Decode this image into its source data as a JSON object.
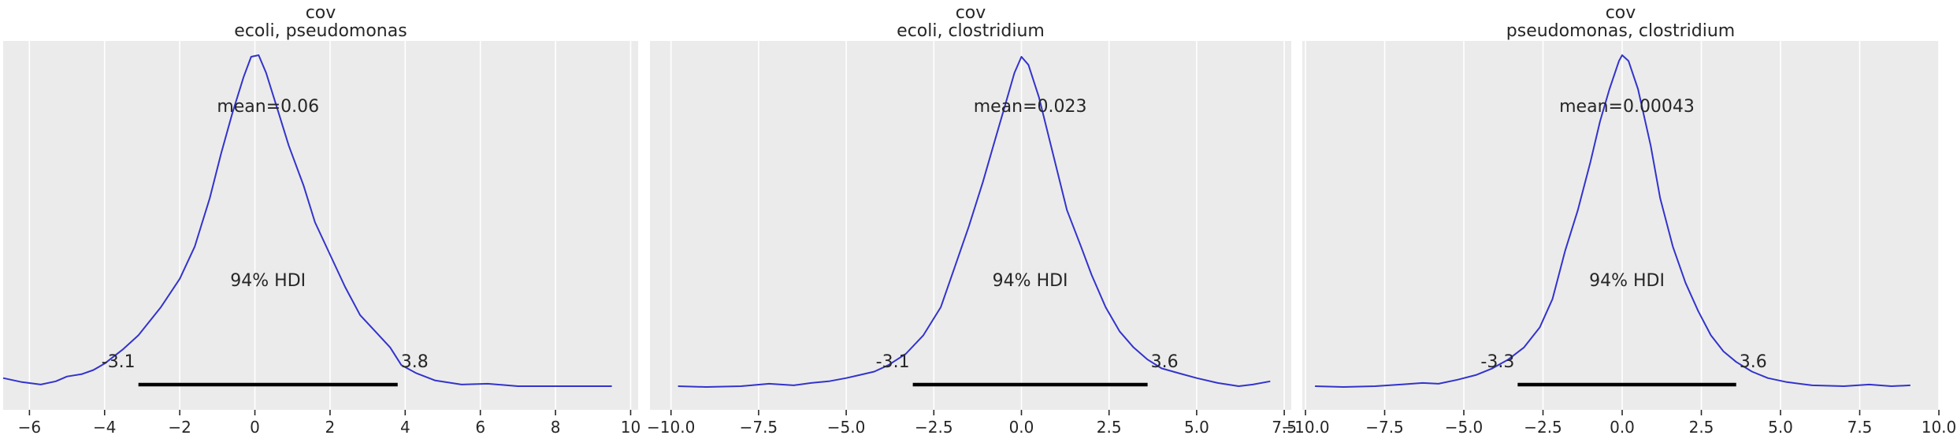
{
  "chart_data": [
    {
      "type": "line",
      "title": "cov",
      "subtitle": "ecoli, pseudomonas",
      "xlim": [
        -6.7,
        10.2
      ],
      "xticks": [
        -6,
        -4,
        -2,
        0,
        2,
        4,
        6,
        8,
        10
      ],
      "xtick_labels": [
        "−6",
        "−4",
        "−2",
        "0",
        "2",
        "4",
        "6",
        "8",
        "10"
      ],
      "grid": true,
      "mean_label": "mean=0.06",
      "hdi_label": "94% HDI",
      "hdi": [
        -3.1,
        3.8
      ],
      "hdi_labels": [
        "-3.1",
        "3.8"
      ],
      "line_color": "#3333cc",
      "hdi_color": "#000000",
      "background": "#ebebeb",
      "series": [
        {
          "x": [
            -6.7,
            -6.2,
            -5.7,
            -5.3,
            -5.0,
            -4.6,
            -4.3,
            -4.0,
            -3.5,
            -3.1,
            -2.5,
            -2.0,
            -1.6,
            -1.2,
            -0.9,
            -0.6,
            -0.3,
            -0.1,
            0.1,
            0.3,
            0.6,
            0.9,
            1.3,
            1.6,
            2.0,
            2.4,
            2.8,
            3.2,
            3.6,
            3.9,
            4.3,
            4.8,
            5.5,
            6.2,
            7.0,
            8.0,
            9.5
          ],
          "y": [
            0.012,
            0.007,
            0.004,
            0.008,
            0.014,
            0.017,
            0.022,
            0.03,
            0.048,
            0.065,
            0.1,
            0.135,
            0.175,
            0.235,
            0.29,
            0.34,
            0.385,
            0.41,
            0.412,
            0.39,
            0.345,
            0.3,
            0.25,
            0.205,
            0.165,
            0.125,
            0.09,
            0.07,
            0.05,
            0.028,
            0.018,
            0.009,
            0.004,
            0.005,
            0.002,
            0.002,
            0.002
          ]
        }
      ]
    },
    {
      "type": "line",
      "title": "cov",
      "subtitle": "ecoli, clostridium",
      "xlim": [
        -10.6,
        7.7
      ],
      "xticks": [
        -10.0,
        -7.5,
        -5.0,
        -2.5,
        0.0,
        2.5,
        5.0,
        7.5
      ],
      "xtick_labels": [
        "−10.0",
        "−7.5",
        "−5.0",
        "−2.5",
        "0.0",
        "2.5",
        "5.0",
        "7.5"
      ],
      "grid": true,
      "mean_label": "mean=0.023",
      "hdi_label": "94% HDI",
      "hdi": [
        -3.1,
        3.6
      ],
      "hdi_labels": [
        "-3.1",
        "3.6"
      ],
      "line_color": "#3333cc",
      "hdi_color": "#000000",
      "background": "#ebebeb",
      "series": [
        {
          "x": [
            -9.8,
            -9.0,
            -8.0,
            -7.2,
            -6.5,
            -6.0,
            -5.5,
            -5.0,
            -4.6,
            -4.2,
            -3.8,
            -3.3,
            -2.8,
            -2.3,
            -1.9,
            -1.5,
            -1.1,
            -0.8,
            -0.5,
            -0.2,
            0.0,
            0.2,
            0.5,
            0.9,
            1.3,
            1.7,
            2.0,
            2.4,
            2.8,
            3.2,
            3.6,
            4.0,
            4.5,
            5.0,
            5.6,
            6.2,
            6.6,
            7.1
          ],
          "y": [
            0.002,
            0.001,
            0.002,
            0.005,
            0.003,
            0.006,
            0.008,
            0.012,
            0.016,
            0.02,
            0.028,
            0.042,
            0.065,
            0.1,
            0.15,
            0.2,
            0.255,
            0.3,
            0.345,
            0.39,
            0.41,
            0.4,
            0.36,
            0.29,
            0.22,
            0.175,
            0.14,
            0.1,
            0.07,
            0.05,
            0.035,
            0.024,
            0.018,
            0.012,
            0.006,
            0.002,
            0.004,
            0.008
          ]
        }
      ]
    },
    {
      "type": "line",
      "title": "cov",
      "subtitle": "pseudomonas, clostridium",
      "xlim": [
        -10.1,
        10.0
      ],
      "xticks": [
        -10.0,
        -7.5,
        -5.0,
        -2.5,
        0.0,
        2.5,
        5.0,
        7.5,
        10.0
      ],
      "xtick_labels": [
        "−10.0",
        "−7.5",
        "−5.0",
        "−2.5",
        "0.0",
        "2.5",
        "5.0",
        "7.5",
        "10.0"
      ],
      "grid": true,
      "mean_label": "mean=0.00043",
      "hdi_label": "94% HDI",
      "hdi": [
        -3.3,
        3.6
      ],
      "hdi_labels": [
        "-3.3",
        "3.6"
      ],
      "line_color": "#3333cc",
      "hdi_color": "#000000",
      "background": "#ebebeb",
      "series": [
        {
          "x": [
            -9.7,
            -8.8,
            -7.8,
            -7.0,
            -6.3,
            -5.8,
            -5.2,
            -4.6,
            -4.1,
            -3.6,
            -3.1,
            -2.6,
            -2.2,
            -1.8,
            -1.4,
            -1.0,
            -0.7,
            -0.4,
            -0.1,
            0.0,
            0.2,
            0.5,
            0.9,
            1.2,
            1.6,
            2.0,
            2.4,
            2.8,
            3.2,
            3.6,
            4.1,
            4.6,
            5.2,
            6.0,
            7.0,
            7.8,
            8.5,
            9.1
          ],
          "y": [
            0.002,
            0.001,
            0.002,
            0.004,
            0.006,
            0.005,
            0.01,
            0.016,
            0.024,
            0.035,
            0.05,
            0.075,
            0.11,
            0.17,
            0.22,
            0.28,
            0.33,
            0.37,
            0.405,
            0.412,
            0.405,
            0.37,
            0.3,
            0.235,
            0.175,
            0.13,
            0.095,
            0.065,
            0.045,
            0.032,
            0.02,
            0.012,
            0.007,
            0.003,
            0.002,
            0.004,
            0.002,
            0.003
          ]
        }
      ]
    }
  ]
}
